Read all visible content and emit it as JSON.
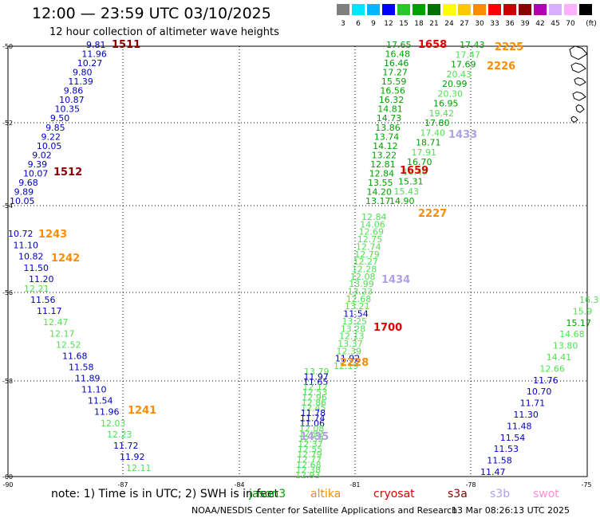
{
  "title": "12:00 — 23:59 UTC 03/10/2025",
  "subtitle": "12 hour collection of altimeter wave heights",
  "scale": {
    "labels": [
      "3",
      "6",
      "9",
      "12",
      "15",
      "18",
      "21",
      "24",
      "27",
      "30",
      "33",
      "36",
      "39",
      "42",
      "45",
      "70",
      "(ft)"
    ],
    "colors": [
      "#7f7f7f",
      "#00e5ff",
      "#00b7ff",
      "#0000ff",
      "#28c828",
      "#00a000",
      "#007000",
      "#ffff00",
      "#ffc800",
      "#ff8c00",
      "#ff0000",
      "#c80000",
      "#8b0000",
      "#b000b0",
      "#d8b0ff",
      "#ffb0ff",
      "#000000"
    ]
  },
  "axes": {
    "lon_ticks": [
      "-90",
      "-87",
      "-84",
      "-81",
      "-78",
      "-75"
    ],
    "lat_ticks": [
      "-50",
      "-52",
      "-54",
      "-56",
      "-58",
      "-60"
    ]
  },
  "colors": {
    "jason3": "#00a000",
    "jason3_light": "#50e050",
    "altika": "#ff8c00",
    "cryosat": "#e00000",
    "s3a": "#8b0000",
    "s3b": "#b0a0e8",
    "swot": "#ff90d0",
    "blue": "#0000c0"
  },
  "footnote": "note: 1) Time is in UTC; 2) SWH is in feet",
  "legend": [
    "jason3",
    "altika",
    "cryosat",
    "s3a",
    "s3b",
    "swot"
  ],
  "credit": "NOAA/NESDIS Center for Satellite Applications and Research",
  "stamp": "13 Mar 08:26:13 UTC 2025",
  "tracks": {
    "blue_west": [
      "9.81",
      "11.96",
      "10.27",
      "9.80",
      "11.39",
      "9.86",
      "10.87",
      "10.35",
      "9.50",
      "9.85",
      "9.22",
      "10.05",
      "9.02",
      "9.39",
      "10.07",
      "9.68",
      "9.89",
      "10.05"
    ],
    "blue_west2": [
      "10.72",
      "11.10",
      "10.82",
      "11.50",
      "11.20"
    ],
    "mixed_west": [
      "12.21",
      "11.56",
      "11.17",
      "12.47",
      "12.17",
      "12.52",
      "11.68",
      "11.58",
      "11.89",
      "11.10",
      "11.54",
      "11.96",
      "12.03",
      "12.23",
      "11.72",
      "11.92",
      "12.11"
    ],
    "west_mixed_colors": [
      "light",
      "blue",
      "blue",
      "light",
      "light",
      "light",
      "blue",
      "blue",
      "blue",
      "blue",
      "blue",
      "blue",
      "light",
      "light",
      "blue",
      "blue",
      "light"
    ],
    "green_main": [
      "17.65",
      "16.48",
      "16.46",
      "17.27",
      "15.59",
      "16.56",
      "16.32",
      "14.81",
      "14.73",
      "13.86",
      "13.74",
      "14.12",
      "13.22",
      "12.81",
      "12.84",
      "13.55",
      "14.20",
      "13.17"
    ],
    "green_east": [
      "17.43",
      "17.47",
      "17.69",
      "20.43",
      "20.99",
      "20.30",
      "16.95",
      "19.42",
      "17.80",
      "17.40",
      "18.71",
      "17.91",
      "16.70",
      "16.40",
      "15.31",
      "15.43",
      "14.90"
    ],
    "mid_center": [
      "12.84",
      "14.06",
      "12.69",
      "12.75",
      "12.74",
      "12.79",
      "12.27",
      "12.28",
      "12.08",
      "13.99",
      "13.23",
      "12.68",
      "13.21",
      "11.54",
      "13.25",
      "13.28",
      "12.13",
      "13.37",
      "12.39",
      "11.92",
      "12.19"
    ],
    "mid_colors": [
      "light",
      "light",
      "light",
      "light",
      "light",
      "light",
      "light",
      "light",
      "light",
      "light",
      "light",
      "light",
      "light",
      "blue",
      "light",
      "light",
      "light",
      "light",
      "light",
      "blue",
      "light"
    ],
    "south_center": [
      "13.79",
      "11.97",
      "11.65",
      "12.12",
      "12.53",
      "12.96",
      "12.86",
      "12.45",
      "11.78",
      "11.74",
      "11.06",
      "12.08",
      "12.92",
      "12.59",
      "12.37",
      "12.55",
      "12.79",
      "12.77",
      "12.68",
      "12.38",
      "12.93"
    ],
    "south_colors": [
      "light",
      "blue",
      "blue",
      "light",
      "light",
      "light",
      "light",
      "light",
      "blue",
      "blue",
      "blue",
      "light",
      "light",
      "light",
      "light",
      "light",
      "light",
      "light",
      "light",
      "light",
      "light"
    ],
    "east_south": [
      "16.3",
      "15.9",
      "15.17",
      "14.68",
      "13.80",
      "14.41",
      "12.66",
      "11.76",
      "10.70",
      "11.71",
      "11.30",
      "11.48",
      "11.54",
      "11.53",
      "11.58",
      "11.47"
    ],
    "east_colors": [
      "light",
      "light",
      "green",
      "light",
      "light",
      "light",
      "light",
      "blue",
      "blue",
      "blue",
      "blue",
      "blue",
      "blue",
      "blue",
      "blue",
      "blue"
    ]
  },
  "times": [
    {
      "text": "1511",
      "color": "s3a"
    },
    {
      "text": "1512",
      "color": "s3a"
    },
    {
      "text": "1243",
      "color": "altika"
    },
    {
      "text": "1242",
      "color": "altika"
    },
    {
      "text": "1241",
      "color": "altika"
    },
    {
      "text": "1658",
      "color": "cryosat"
    },
    {
      "text": "1659",
      "color": "cryosat"
    },
    {
      "text": "1700",
      "color": "cryosat"
    },
    {
      "text": "2225",
      "color": "altika"
    },
    {
      "text": "2226",
      "color": "altika"
    },
    {
      "text": "2227",
      "color": "altika"
    },
    {
      "text": "2228",
      "color": "altika"
    },
    {
      "text": "1433",
      "color": "s3b"
    },
    {
      "text": "1434",
      "color": "s3b"
    },
    {
      "text": "1435",
      "color": "s3b"
    }
  ]
}
